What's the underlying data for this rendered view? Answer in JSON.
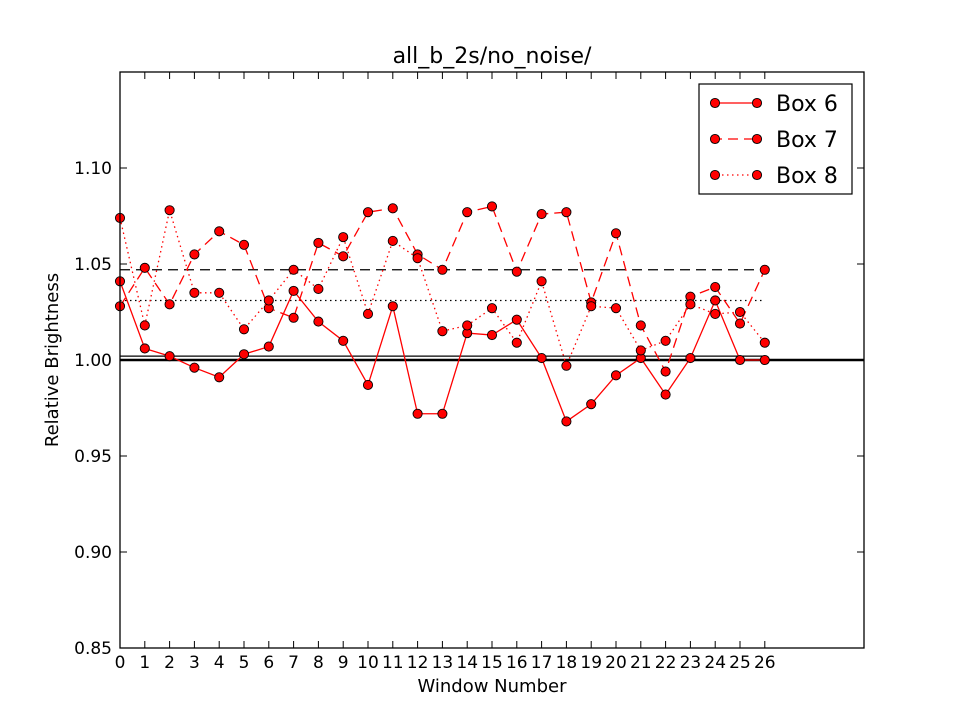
{
  "chart_data": {
    "type": "line",
    "title": "all_b_2s/no_noise/",
    "xlabel": "Window Number",
    "ylabel": "Relative Brightness",
    "xlim": [
      0,
      30
    ],
    "ylim": [
      0.85,
      1.15
    ],
    "x": [
      0,
      1,
      2,
      3,
      4,
      5,
      6,
      7,
      8,
      9,
      10,
      11,
      12,
      13,
      14,
      15,
      16,
      17,
      18,
      19,
      20,
      21,
      22,
      23,
      24,
      25,
      26
    ],
    "xticks": [
      0,
      1,
      2,
      3,
      4,
      5,
      6,
      7,
      8,
      9,
      10,
      11,
      12,
      13,
      14,
      15,
      16,
      17,
      18,
      19,
      20,
      21,
      22,
      23,
      24,
      25,
      26
    ],
    "yticks": [
      0.85,
      0.9,
      0.95,
      1.0,
      1.05,
      1.1
    ],
    "ytick_labels": [
      "0.85",
      "0.90",
      "0.95",
      "1.00",
      "1.05",
      "1.10"
    ],
    "series": [
      {
        "name": "Box 6",
        "linestyle": "solid",
        "color": "#ff0000",
        "values": [
          1.041,
          1.006,
          1.002,
          0.996,
          0.991,
          1.003,
          1.007,
          1.036,
          1.02,
          1.01,
          0.987,
          1.028,
          0.972,
          0.972,
          1.014,
          1.013,
          1.021,
          1.001,
          0.968,
          0.977,
          0.992,
          1.001,
          0.982,
          1.001,
          1.031,
          1.0,
          1.0
        ],
        "mean": 1.002
      },
      {
        "name": "Box 7",
        "linestyle": "dashed",
        "color": "#ff0000",
        "values": [
          1.028,
          1.048,
          1.029,
          1.055,
          1.067,
          1.06,
          1.027,
          1.022,
          1.061,
          1.054,
          1.077,
          1.079,
          1.055,
          1.047,
          1.077,
          1.08,
          1.046,
          1.076,
          1.077,
          1.03,
          1.066,
          1.018,
          0.994,
          1.033,
          1.038,
          1.019,
          1.047
        ],
        "mean": 1.047
      },
      {
        "name": "Box 8",
        "linestyle": "dotted",
        "color": "#ff0000",
        "values": [
          1.074,
          1.018,
          1.078,
          1.035,
          1.035,
          1.016,
          1.031,
          1.047,
          1.037,
          1.064,
          1.024,
          1.062,
          1.053,
          1.015,
          1.018,
          1.027,
          1.009,
          1.041,
          0.997,
          1.028,
          1.027,
          1.005,
          1.01,
          1.029,
          1.024,
          1.025,
          1.009
        ],
        "mean": 1.031
      }
    ],
    "reference_line": 1.0,
    "marker_color": "#ff0000",
    "marker_edge": "#000000",
    "grid": false,
    "legend_position": "top-right"
  }
}
